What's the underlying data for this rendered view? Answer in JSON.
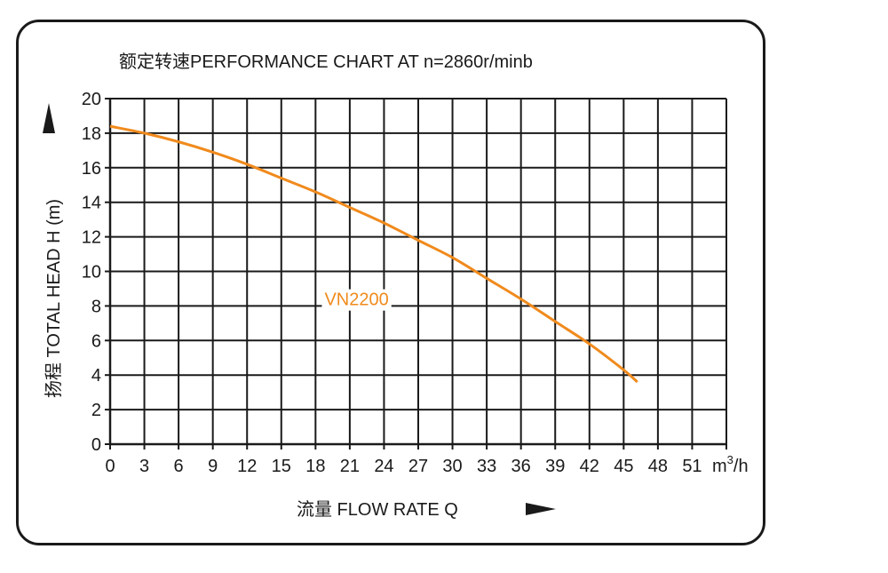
{
  "chart_data": {
    "type": "line",
    "title": "额定转速PERFORMANCE CHART AT n=2860r/minb",
    "xlabel": "流量 FLOW RATE Q",
    "ylabel": "扬程 TOTAL HEAD H (m)",
    "x_unit": "m³/h",
    "xlim": [
      0,
      54
    ],
    "ylim": [
      0,
      20
    ],
    "x_ticks": [
      0,
      3,
      6,
      9,
      12,
      15,
      18,
      21,
      24,
      27,
      30,
      33,
      36,
      39,
      42,
      45,
      48,
      51
    ],
    "y_ticks": [
      0,
      2,
      4,
      6,
      8,
      10,
      12,
      14,
      16,
      18,
      20
    ],
    "grid": true,
    "series": [
      {
        "name": "VN2200",
        "color": "#f08a1c",
        "x": [
          0,
          3,
          6,
          9,
          12,
          15,
          18,
          21,
          24,
          27,
          30,
          33,
          36,
          39,
          42,
          45,
          46.2
        ],
        "y": [
          18.4,
          18.0,
          17.5,
          16.9,
          16.2,
          15.4,
          14.6,
          13.7,
          12.8,
          11.8,
          10.8,
          9.6,
          8.4,
          7.1,
          5.8,
          4.3,
          3.6
        ]
      }
    ]
  }
}
